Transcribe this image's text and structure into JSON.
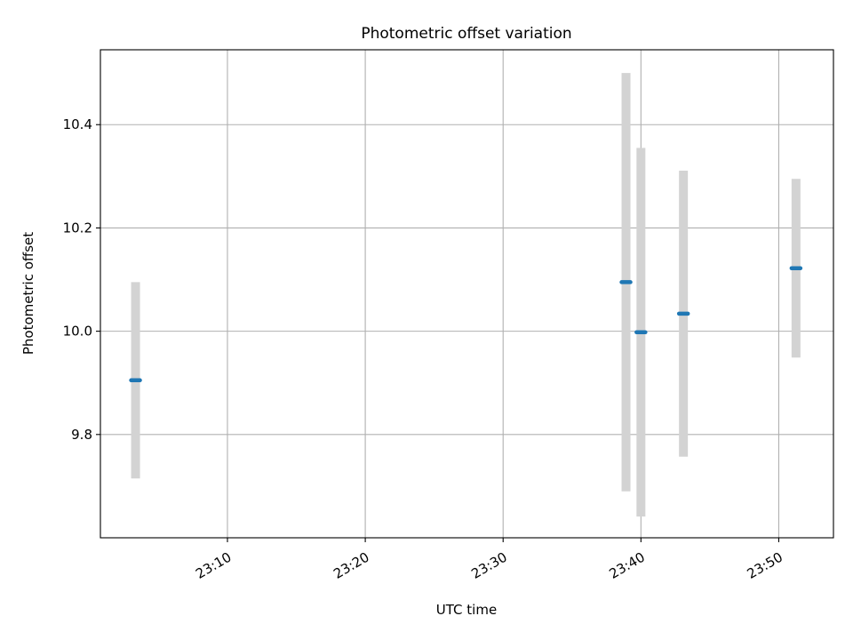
{
  "chart_data": {
    "type": "scatter",
    "title": "Photometric offset variation",
    "xlabel": "UTC time",
    "ylabel": "Photometric offset",
    "grid": true,
    "x_ticks": [
      "23:10",
      "23:20",
      "23:30",
      "23:40",
      "23:50"
    ],
    "y_ticks": [
      "9.8",
      "10.0",
      "10.2",
      "10.4"
    ],
    "xlim": [
      "23:00:47",
      "23:53:58"
    ],
    "ylim": [
      9.6,
      10.545
    ],
    "colors": {
      "marker": "#1f77b4",
      "errorbar": "#d3d3d3"
    },
    "points": [
      {
        "time": "23:03:20",
        "value": 9.905,
        "err": 0.19
      },
      {
        "time": "23:38:55",
        "value": 10.095,
        "err": 0.405
      },
      {
        "time": "23:40:00",
        "value": 9.998,
        "err": 0.357
      },
      {
        "time": "23:43:05",
        "value": 10.034,
        "err": 0.277
      },
      {
        "time": "23:51:15",
        "value": 10.122,
        "err": 0.173
      }
    ]
  }
}
